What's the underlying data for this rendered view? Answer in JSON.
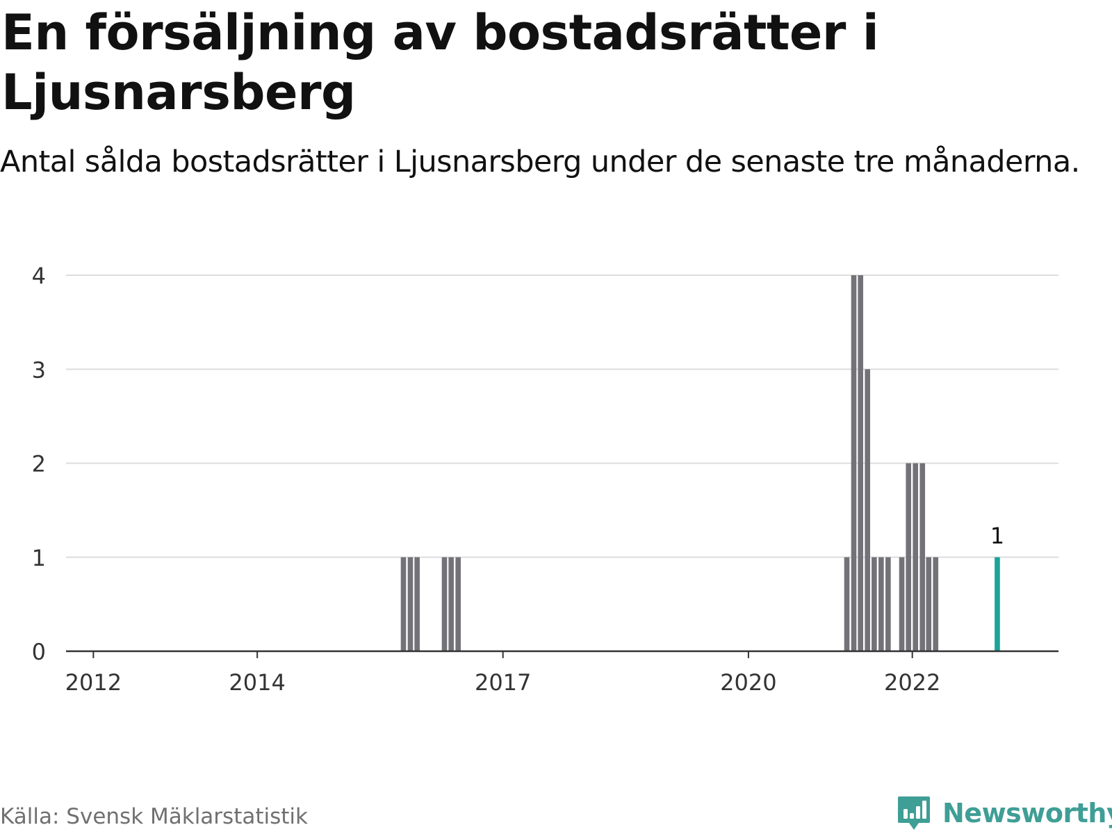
{
  "header": {
    "title": "En försäljning av bostadsrätter i Ljusnarsberg",
    "subtitle": "Antal sålda bostadsrätter i Ljusnarsberg under de senaste tre månaderna."
  },
  "footer": {
    "source": "Källa: Svensk Mäklarstatistik",
    "brand": "Newsworthy",
    "brand_icon": "newsworthy-logo-icon"
  },
  "colors": {
    "bar": "#737278",
    "highlight": "#1aa39a",
    "grid": "#dddddd",
    "axis": "#333333",
    "brand": "#3f9e96",
    "source_text": "#707070"
  },
  "chart_data": {
    "type": "bar",
    "title": "En försäljning av bostadsrätter i Ljusnarsberg",
    "subtitle": "Antal sålda bostadsrätter i Ljusnarsberg under de senaste tre månaderna.",
    "xlabel": "",
    "ylabel": "",
    "x_axis": "date",
    "xlim": [
      "2011-09-01",
      "2023-10-15"
    ],
    "ylim": [
      0,
      4
    ],
    "y_ticks": [
      0,
      1,
      2,
      3,
      4
    ],
    "x_ticks": [
      {
        "label": "2012",
        "date": "2012-01-01"
      },
      {
        "label": "2014",
        "date": "2014-01-01"
      },
      {
        "label": "2017",
        "date": "2017-01-01"
      },
      {
        "label": "2020",
        "date": "2020-01-01"
      },
      {
        "label": "2022",
        "date": "2022-01-01"
      }
    ],
    "grid": true,
    "legend": "none",
    "series": [
      {
        "points": [
          {
            "date": "2015-10-15",
            "value": 1
          },
          {
            "date": "2015-11-15",
            "value": 1
          },
          {
            "date": "2015-12-15",
            "value": 1
          },
          {
            "date": "2016-04-15",
            "value": 1
          },
          {
            "date": "2016-05-15",
            "value": 1
          },
          {
            "date": "2016-06-15",
            "value": 1
          },
          {
            "date": "2021-03-15",
            "value": 1
          },
          {
            "date": "2021-04-15",
            "value": 4
          },
          {
            "date": "2021-05-15",
            "value": 4
          },
          {
            "date": "2021-06-15",
            "value": 3
          },
          {
            "date": "2021-07-15",
            "value": 1
          },
          {
            "date": "2021-08-15",
            "value": 1
          },
          {
            "date": "2021-09-15",
            "value": 1
          },
          {
            "date": "2021-11-15",
            "value": 1
          },
          {
            "date": "2021-12-15",
            "value": 2
          },
          {
            "date": "2022-01-15",
            "value": 2
          },
          {
            "date": "2022-02-15",
            "value": 2
          },
          {
            "date": "2022-03-15",
            "value": 1
          },
          {
            "date": "2022-04-15",
            "value": 1
          }
        ]
      }
    ],
    "highlight": {
      "date": "2023-01-15",
      "value": 1,
      "label": "1"
    }
  }
}
